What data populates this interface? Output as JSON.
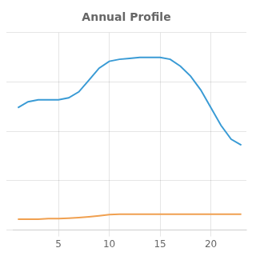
{
  "chart_data": {
    "type": "line",
    "title": "Annual Profile",
    "x": [
      1,
      2,
      3,
      4,
      5,
      6,
      7,
      8,
      9,
      10,
      11,
      12,
      13,
      14,
      15,
      16,
      17,
      18,
      19,
      20,
      21,
      22,
      23
    ],
    "series": [
      {
        "color": "#3a9bd5",
        "values": [
          0.62,
          0.65,
          0.66,
          0.66,
          0.66,
          0.67,
          0.7,
          0.76,
          0.82,
          0.855,
          0.865,
          0.87,
          0.875,
          0.875,
          0.875,
          0.865,
          0.83,
          0.78,
          0.71,
          0.62,
          0.53,
          0.46,
          0.43
        ]
      },
      {
        "color": "#f0a050",
        "values": [
          0.055,
          0.055,
          0.055,
          0.058,
          0.058,
          0.06,
          0.063,
          0.067,
          0.072,
          0.078,
          0.08,
          0.08,
          0.08,
          0.08,
          0.08,
          0.08,
          0.08,
          0.08,
          0.08,
          0.08,
          0.08,
          0.08,
          0.08
        ]
      }
    ],
    "xlim": [
      0.5,
      23.5
    ],
    "xticks": [
      5,
      10,
      15,
      20
    ],
    "ylim": [
      0.0,
      1.0
    ],
    "yticks": [
      0.0,
      0.25,
      0.5,
      0.75,
      1.0
    ],
    "grid": true,
    "tick_labels": "x"
  }
}
